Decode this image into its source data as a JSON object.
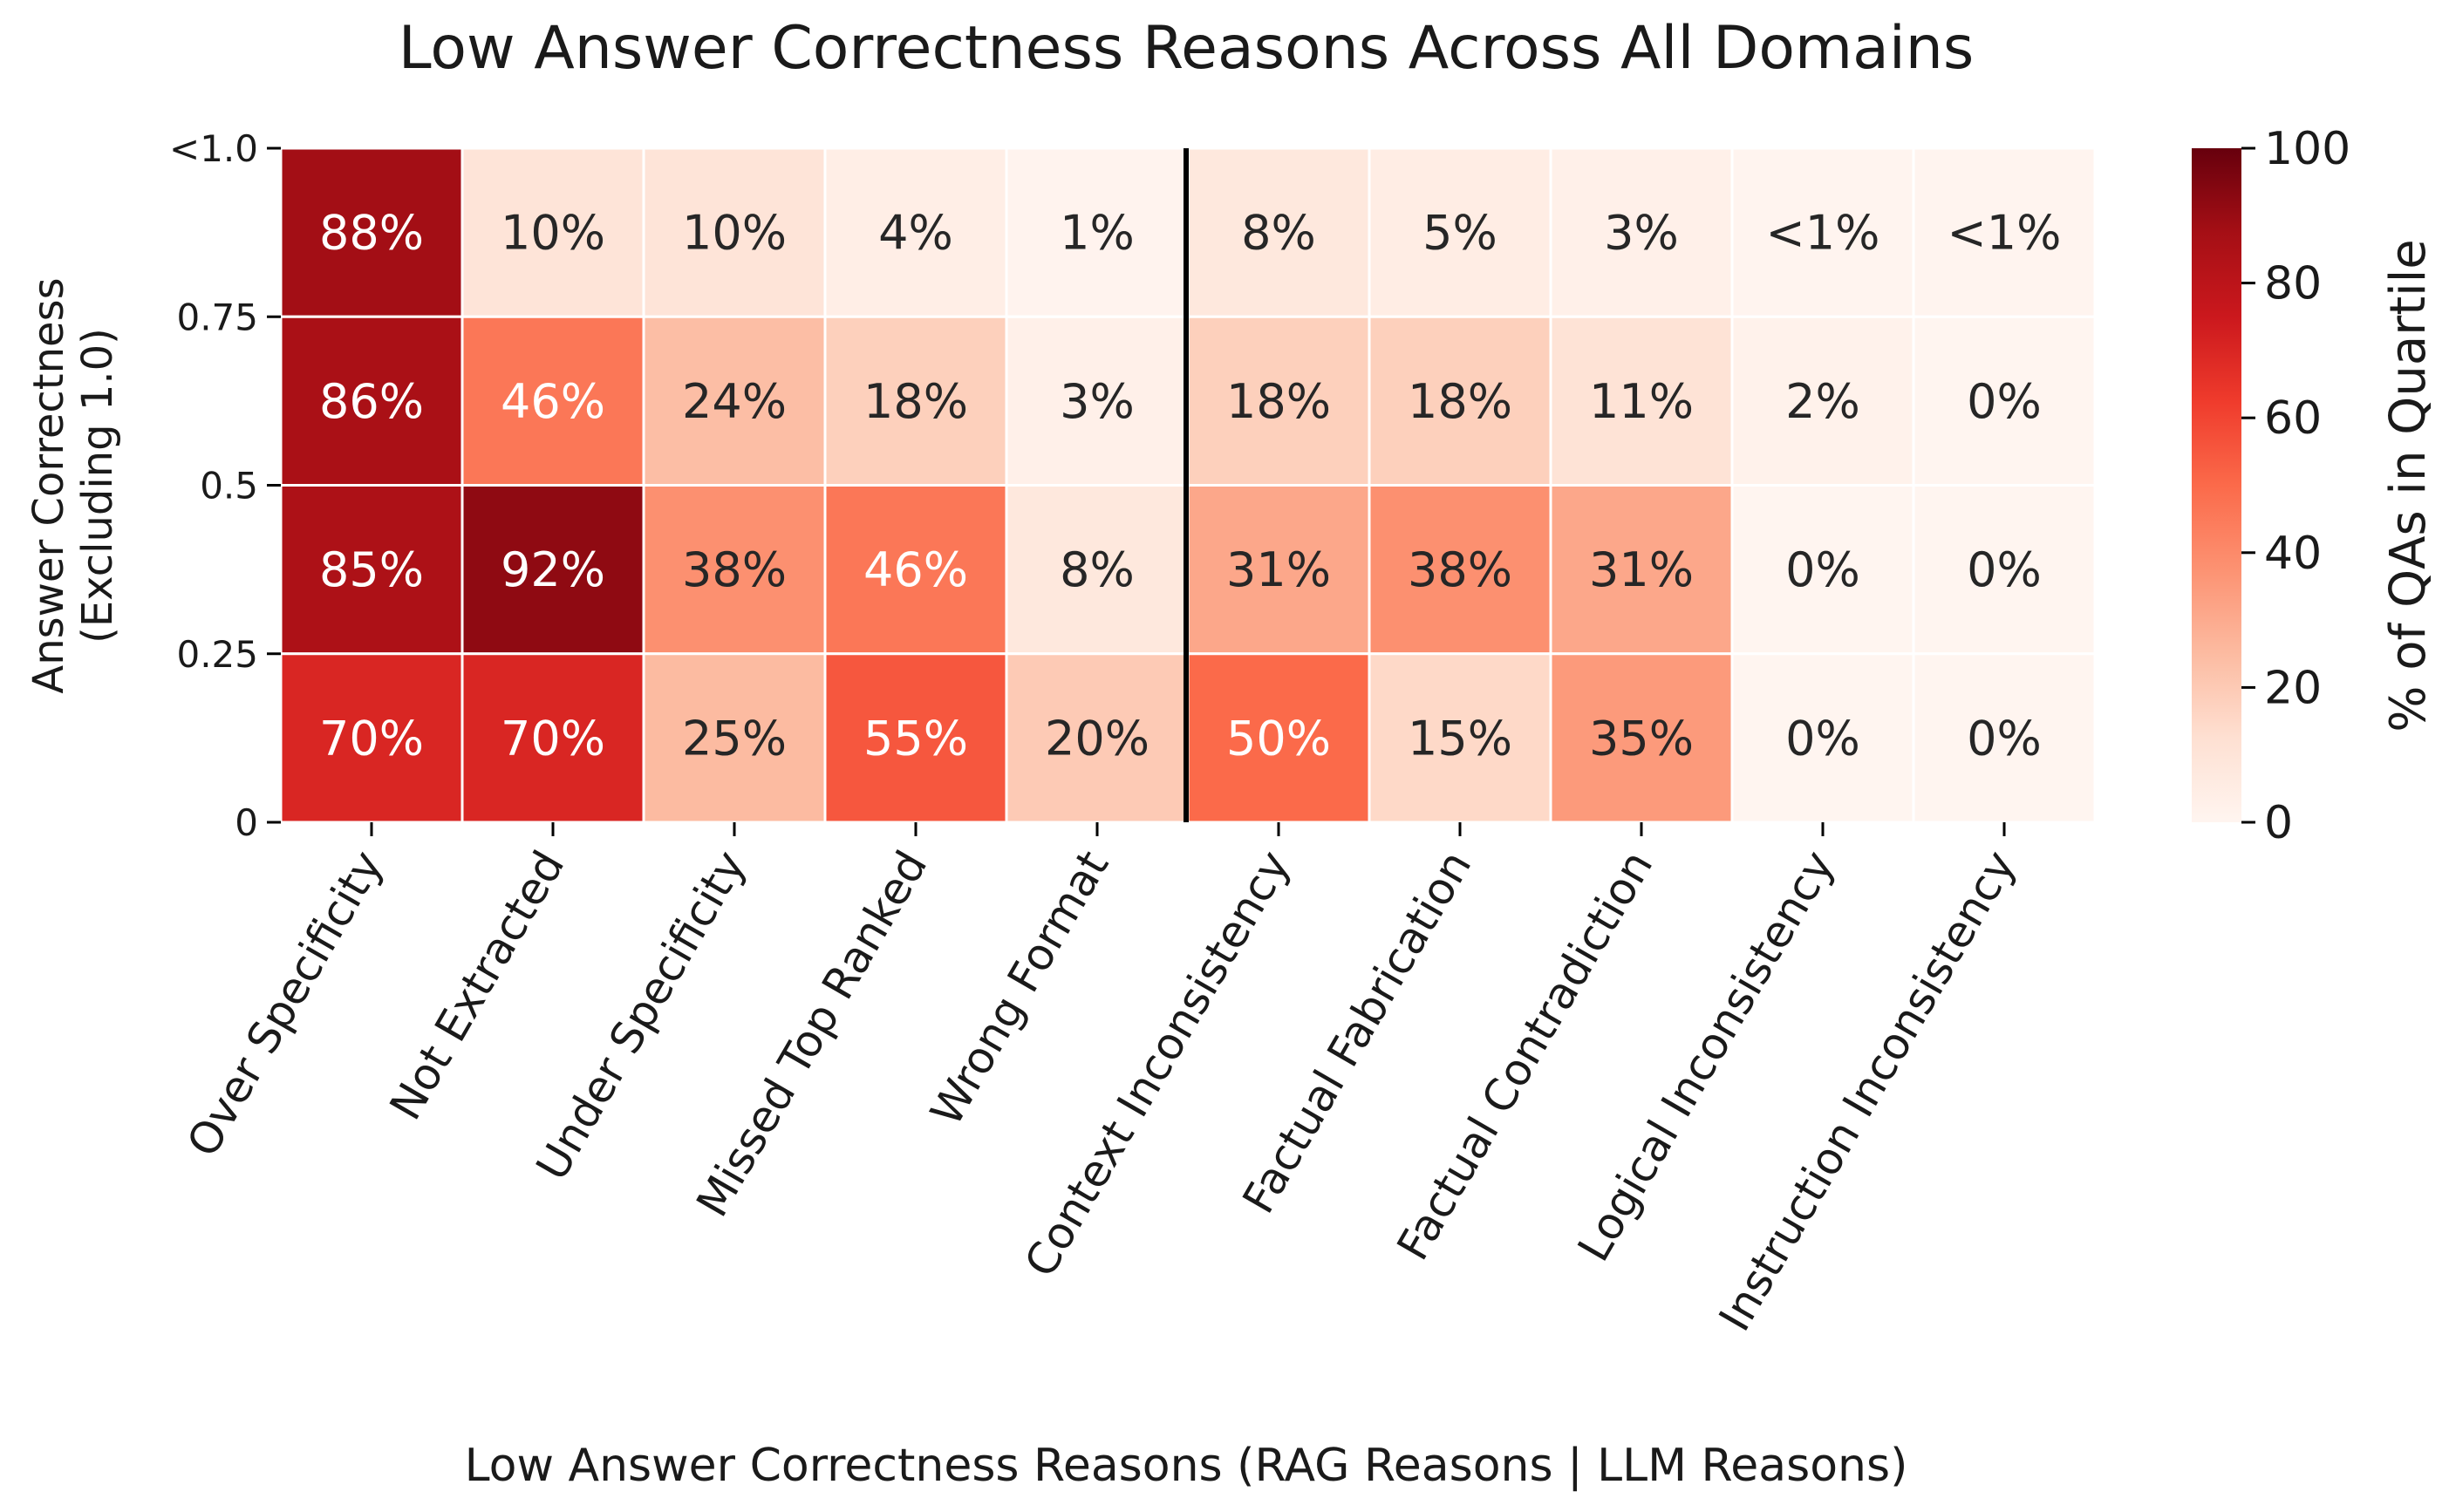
{
  "chart_data": {
    "type": "heatmap",
    "title": "Low Answer Correctness Reasons Across All Domains",
    "xlabel": "Low Answer Correctness Reasons (RAG Reasons | LLM Reasons)",
    "ylabel_line1": "Answer Correctness",
    "ylabel_line2": "(Excluding 1.0)",
    "colorbar_label": "% of QAs in Quartile",
    "colormap": "Reds",
    "vmin": 0,
    "vmax": 100,
    "colorbar_ticks": [
      "0",
      "20",
      "40",
      "60",
      "80",
      "100"
    ],
    "y_tick_labels": [
      "<1.0",
      "0.75",
      "0.5",
      "0.25",
      "0"
    ],
    "divider_after_column": 5,
    "categories": [
      "Over Specificity",
      "Not Extracted",
      "Under Specificity",
      "Missed Top Ranked",
      "Wrong Format",
      "Context Inconsistency",
      "Factual Fabrication",
      "Factual Contradiction",
      "Logical Inconsistency",
      "Instruction Inconsistency"
    ],
    "values": [
      [
        88,
        10,
        10,
        4,
        1,
        8,
        5,
        3,
        0.4,
        0.4
      ],
      [
        86,
        46,
        24,
        18,
        3,
        18,
        18,
        11,
        2,
        0
      ],
      [
        85,
        92,
        38,
        46,
        8,
        31,
        38,
        31,
        0,
        0
      ],
      [
        70,
        70,
        25,
        55,
        20,
        50,
        15,
        35,
        0,
        0
      ]
    ],
    "cell_labels": [
      [
        "88%",
        "10%",
        "10%",
        "4%",
        "1%",
        "8%",
        "5%",
        "3%",
        "<1%",
        "<1%"
      ],
      [
        "86%",
        "46%",
        "24%",
        "18%",
        "3%",
        "18%",
        "18%",
        "11%",
        "2%",
        "0%"
      ],
      [
        "85%",
        "92%",
        "38%",
        "46%",
        "8%",
        "31%",
        "38%",
        "31%",
        "0%",
        "0%"
      ],
      [
        "70%",
        "70%",
        "25%",
        "55%",
        "20%",
        "50%",
        "15%",
        "35%",
        "0%",
        "0%"
      ]
    ]
  }
}
